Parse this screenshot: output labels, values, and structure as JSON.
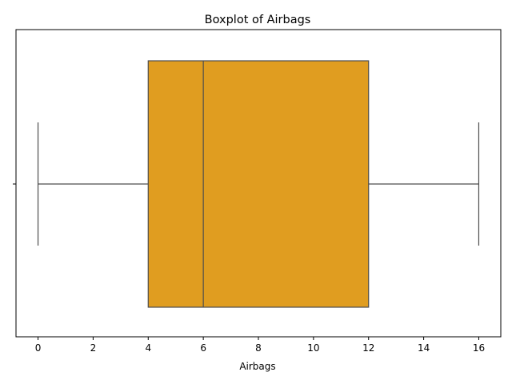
{
  "chart_data": {
    "type": "box",
    "title": "Boxplot of Airbags",
    "xlabel": "Airbags",
    "ylabel": "",
    "xlim": [
      -0.8,
      16.8
    ],
    "xticks": [
      0,
      2,
      4,
      6,
      8,
      10,
      12,
      14,
      16
    ],
    "xtick_labels": [
      "0",
      "2",
      "4",
      "6",
      "8",
      "10",
      "12",
      "14",
      "16"
    ],
    "grid": false,
    "orientation": "horizontal",
    "box": {
      "whisker_low": 0,
      "q1": 4,
      "median": 6,
      "q3": 12,
      "whisker_high": 16
    },
    "colors": {
      "box_fill": "#e09d20",
      "line": "#4d4d4d",
      "axis": "#000000"
    }
  }
}
